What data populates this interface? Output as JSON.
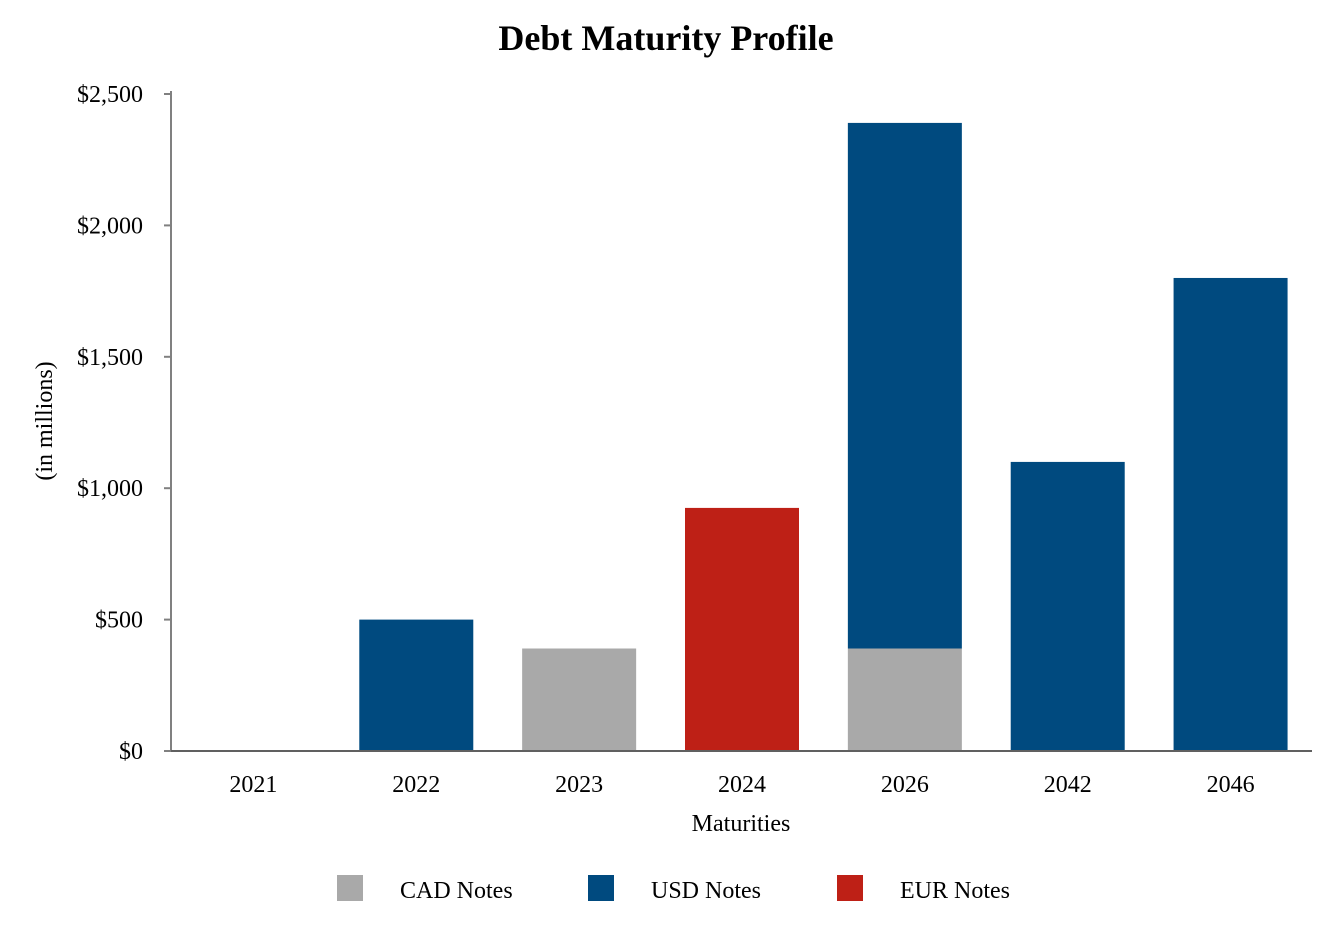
{
  "chart_data": {
    "type": "bar",
    "stacked": true,
    "title": "Debt Maturity Profile",
    "xlabel": "Maturities",
    "ylabel": "(in millions)",
    "categories": [
      "2021",
      "2022",
      "2023",
      "2024",
      "2026",
      "2042",
      "2046"
    ],
    "series": [
      {
        "name": "CAD Notes",
        "color": "#A9A9A9",
        "values": [
          0,
          0,
          390,
          0,
          390,
          0,
          0
        ]
      },
      {
        "name": "USD Notes",
        "color": "#004A7F",
        "values": [
          0,
          500,
          0,
          0,
          2000,
          1100,
          1800
        ]
      },
      {
        "name": "EUR Notes",
        "color": "#BE2016",
        "values": [
          0,
          0,
          0,
          925,
          0,
          0,
          0
        ]
      }
    ],
    "ylim": [
      0,
      2500
    ],
    "yticks": [
      0,
      500,
      1000,
      1500,
      2000,
      2500
    ],
    "ytick_labels": [
      "$0",
      "$500",
      "$1,000",
      "$1,500",
      "$2,000",
      "$2,500"
    ],
    "grid": false,
    "legend_position": "bottom"
  }
}
